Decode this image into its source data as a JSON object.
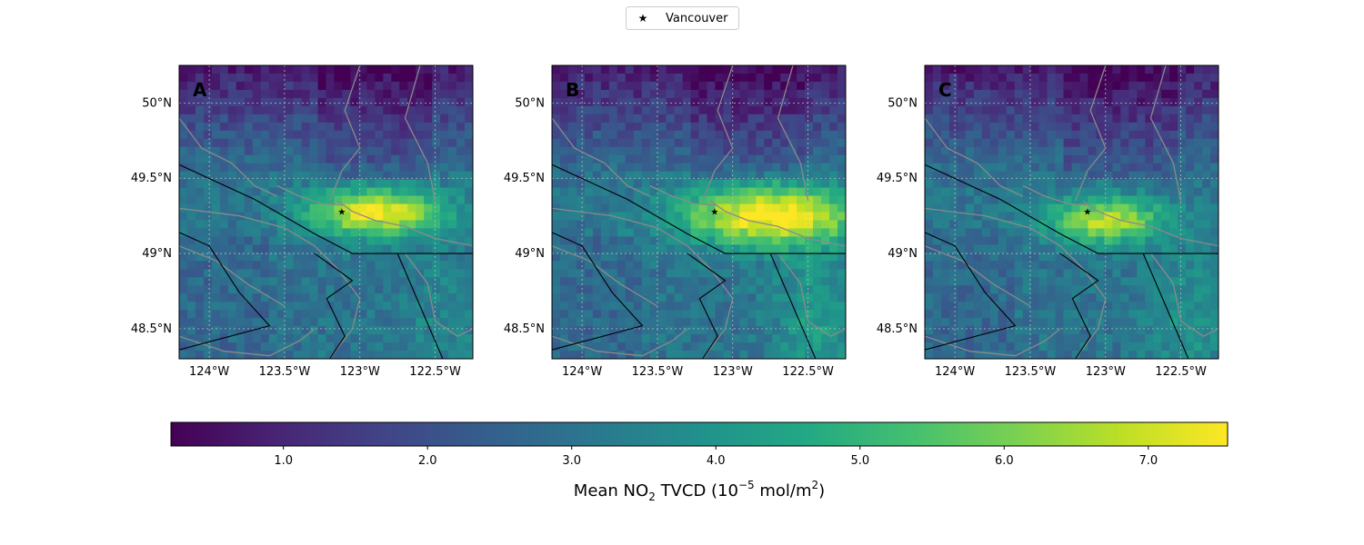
{
  "legend": {
    "marker": "star-icon",
    "label": "Vancouver"
  },
  "map_data": {
    "lon_range": [
      -124.2,
      -122.25
    ],
    "lat_range": [
      48.3,
      50.25
    ],
    "grid": {
      "cols": 36,
      "rows": 36
    },
    "city": {
      "name": "Vancouver",
      "lon": -123.12,
      "lat": 49.28
    },
    "lon_ticks": [
      {
        "value": -124.0,
        "label": "124°W"
      },
      {
        "value": -123.5,
        "label": "123.5°W"
      },
      {
        "value": -123.0,
        "label": "123°W"
      },
      {
        "value": -122.5,
        "label": "122.5°W"
      }
    ],
    "lat_ticks": [
      {
        "value": 50.0,
        "label": "50°N"
      },
      {
        "value": 49.5,
        "label": "49.5°N"
      },
      {
        "value": 49.0,
        "label": "49°N"
      },
      {
        "value": 48.5,
        "label": "48.5°N"
      }
    ],
    "panels": [
      {
        "label": "A",
        "peak": 7.5,
        "hot_lon": -122.9,
        "hot_lat": 49.27,
        "hot_sx": 0.32,
        "hot_sy": 0.11,
        "south_plume": 3.6,
        "seed": 11
      },
      {
        "label": "B",
        "peak": 7.8,
        "hot_lon": -122.75,
        "hot_lat": 49.25,
        "hot_sx": 0.42,
        "hot_sy": 0.14,
        "south_plume": 4.3,
        "seed": 23
      },
      {
        "label": "C",
        "peak": 6.8,
        "hot_lon": -123.0,
        "hot_lat": 49.22,
        "hot_sx": 0.28,
        "hot_sy": 0.11,
        "south_plume": 4.0,
        "seed": 37
      }
    ]
  },
  "colorbar": {
    "colormap": "viridis",
    "vmin": 0.22,
    "vmax": 7.55,
    "ticks": [
      "1.0",
      "2.0",
      "3.0",
      "4.0",
      "5.0",
      "6.0",
      "7.0"
    ],
    "label_main": "Mean NO",
    "label_sub": "2",
    "label_mid": " TVCD (10",
    "label_sup": "−5",
    "label_unit": " mol/m",
    "label_sup2": "2",
    "label_end": ")"
  },
  "colors": {
    "road": "#8a8a8a",
    "border": "#000000",
    "grid": "#bbbbbb"
  }
}
